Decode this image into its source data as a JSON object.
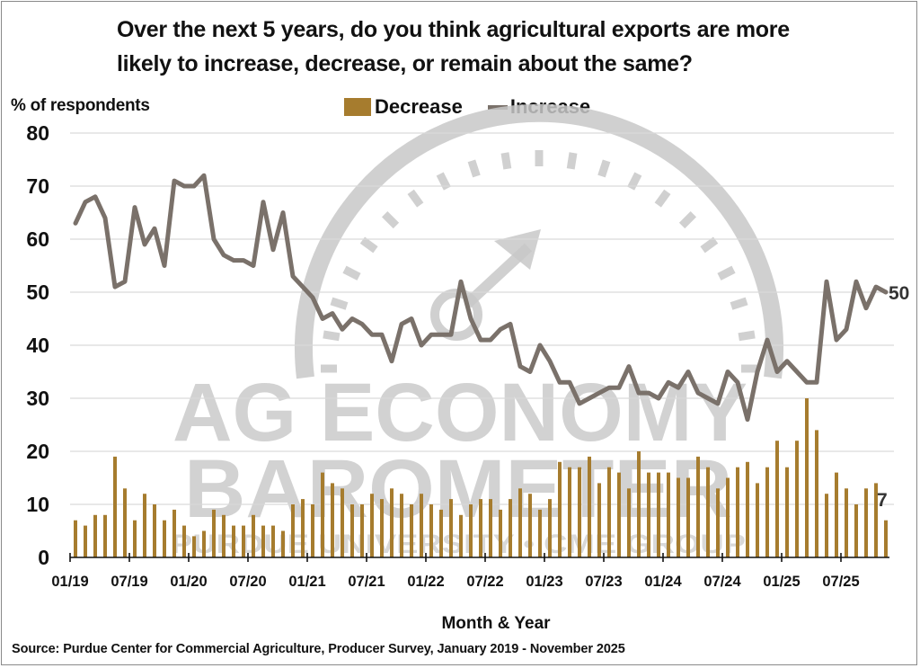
{
  "title_lines": [
    "Over the next 5 years, do you think agricultural exports are more",
    "likely to increase, decrease, or remain about the same?"
  ],
  "y_axis_label": "% of respondents",
  "x_axis_label": "Month & Year",
  "source": "Source: Purdue Center for Commercial Agriculture, Producer Survey, January 2019 - November 2025",
  "legend": [
    {
      "label": "Decrease",
      "type": "bar",
      "color": "#a67c2e"
    },
    {
      "label": "Increase",
      "type": "line",
      "color": "#7a716a"
    }
  ],
  "watermark": {
    "line1": "AG ECONOMY",
    "line2": "BAROMETER",
    "line3": "PURDUE UNIVERSITY  •  CME GROUP"
  },
  "end_labels": {
    "increase": "50",
    "decrease": "7"
  },
  "colors": {
    "decrease": "#a67c2e",
    "increase": "#7a716a",
    "grid": "#d9d9d9",
    "watermark": "#c8c8c8"
  },
  "chart_data": {
    "type": "bar+line",
    "title": "Over the next 5 years, do you think agricultural exports are more likely to increase, decrease, or remain about the same?",
    "xlabel": "Month & Year",
    "ylabel": "% of respondents",
    "ylim": [
      0,
      80
    ],
    "yticks": [
      0,
      10,
      20,
      30,
      40,
      50,
      60,
      70,
      80
    ],
    "grid": true,
    "legend_position": "top",
    "xtick_labels": [
      "01/19",
      "07/19",
      "01/20",
      "07/20",
      "01/21",
      "07/21",
      "01/22",
      "07/22",
      "01/23",
      "07/23",
      "01/24",
      "07/24",
      "01/25",
      "07/25"
    ],
    "x_start": "01/2019",
    "x_end": "11/2025",
    "series": [
      {
        "name": "Decrease",
        "type": "bar",
        "values": [
          7,
          6,
          8,
          8,
          19,
          13,
          7,
          12,
          10,
          7,
          9,
          6,
          4,
          5,
          9,
          8,
          6,
          6,
          8,
          6,
          6,
          5,
          10,
          11,
          10,
          16,
          14,
          13,
          10,
          10,
          12,
          11,
          13,
          12,
          10,
          12,
          10,
          9,
          11,
          8,
          10,
          11,
          11,
          9,
          11,
          13,
          12,
          9,
          11,
          18,
          17,
          17,
          19,
          14,
          17,
          16,
          13,
          20,
          16,
          16,
          16,
          15,
          15,
          19,
          17,
          13,
          15,
          17,
          18,
          14,
          17,
          22,
          17,
          22,
          30,
          24,
          12,
          16,
          13,
          10,
          13,
          14,
          7
        ]
      },
      {
        "name": "Increase",
        "type": "line",
        "values": [
          63,
          67,
          68,
          64,
          51,
          52,
          66,
          59,
          62,
          55,
          71,
          70,
          70,
          72,
          60,
          57,
          56,
          56,
          55,
          67,
          58,
          65,
          53,
          51,
          49,
          45,
          46,
          43,
          45,
          44,
          42,
          42,
          37,
          44,
          45,
          40,
          42,
          42,
          42,
          52,
          45,
          41,
          41,
          43,
          44,
          36,
          35,
          40,
          37,
          33,
          33,
          29,
          30,
          31,
          32,
          32,
          36,
          31,
          31,
          30,
          33,
          32,
          35,
          31,
          30,
          29,
          35,
          33,
          26,
          35,
          41,
          35,
          37,
          35,
          33,
          33,
          52,
          41,
          43,
          52,
          47,
          51,
          50
        ]
      }
    ]
  }
}
